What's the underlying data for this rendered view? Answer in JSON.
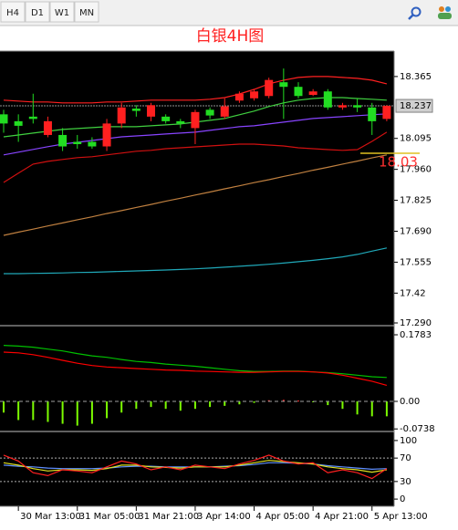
{
  "toolbar": [
    "H4",
    "D1",
    "W1",
    "MN"
  ],
  "chart_data": [
    {
      "type": "candlestick",
      "title": "白银4H图",
      "ylim": [
        17.286,
        18.468
      ],
      "yticks": [
        18.365,
        18.095,
        {
          "value": 17.96,
          "label": "17.960"
        },
        17.825,
        {
          "value": 17.69,
          "label": "17.690"
        },
        17.555,
        17.42,
        {
          "value": 17.29,
          "label": "17.290"
        }
      ],
      "current_price": 18.237,
      "level": 18.03,
      "level_color": "#e0c020",
      "level_label_color": "#ff3030",
      "up_color": "#ff2020",
      "down_color": "#22dd22",
      "candles": {
        "open": [
          18.2,
          18.17,
          18.19,
          18.11,
          18.11,
          18.08,
          18.08,
          18.06,
          18.16,
          18.225,
          18.19,
          18.19,
          18.17,
          18.14,
          18.22,
          18.19,
          18.26,
          18.27,
          18.28,
          18.34,
          18.32,
          18.285,
          18.3,
          18.23,
          18.24,
          18.23,
          18.18
        ],
        "high": [
          18.22,
          18.2,
          18.29,
          18.19,
          18.14,
          18.11,
          18.1,
          18.18,
          18.25,
          18.24,
          18.25,
          18.2,
          18.18,
          18.22,
          18.23,
          18.27,
          18.3,
          18.31,
          18.36,
          18.4,
          18.34,
          18.31,
          18.31,
          18.25,
          18.27,
          18.25,
          18.24
        ],
        "low": [
          18.12,
          18.08,
          18.16,
          18.1,
          18.04,
          18.05,
          18.05,
          18.04,
          18.14,
          18.19,
          18.17,
          18.16,
          18.14,
          18.07,
          18.18,
          18.18,
          18.25,
          18.26,
          18.27,
          18.18,
          18.27,
          18.28,
          18.22,
          18.22,
          18.21,
          18.11,
          18.17
        ],
        "close": [
          18.16,
          18.15,
          18.18,
          18.17,
          18.06,
          18.07,
          18.06,
          18.16,
          18.23,
          18.215,
          18.24,
          18.17,
          18.16,
          18.21,
          18.195,
          18.235,
          18.29,
          18.3,
          18.35,
          18.32,
          18.28,
          18.3,
          18.23,
          18.24,
          18.23,
          18.17,
          18.237
        ]
      },
      "lines": [
        {
          "color": "#ff2020",
          "values": [
            18.262,
            18.258,
            18.254,
            18.254,
            18.25,
            18.25,
            18.25,
            18.254,
            18.254,
            18.258,
            18.262,
            18.262,
            18.262,
            18.262,
            18.266,
            18.273,
            18.289,
            18.309,
            18.333,
            18.349,
            18.361,
            18.365,
            18.365,
            18.361,
            18.357,
            18.349,
            18.333
          ]
        },
        {
          "color": "#d01010",
          "values": [
            17.903,
            17.943,
            17.983,
            17.995,
            18.003,
            18.011,
            18.015,
            18.023,
            18.031,
            18.039,
            18.043,
            18.05,
            18.054,
            18.058,
            18.062,
            18.066,
            18.07,
            18.07,
            18.066,
            18.062,
            18.054,
            18.05,
            18.046,
            18.043,
            18.046,
            18.082,
            18.122
          ]
        },
        {
          "color": "#40d040",
          "values": [
            18.102,
            18.11,
            18.118,
            18.126,
            18.134,
            18.138,
            18.142,
            18.146,
            18.146,
            18.146,
            18.15,
            18.154,
            18.158,
            18.166,
            18.174,
            18.182,
            18.198,
            18.214,
            18.234,
            18.25,
            18.262,
            18.269,
            18.273,
            18.273,
            18.269,
            18.266,
            18.262
          ]
        },
        {
          "color": "#8844ff",
          "values": [
            18.023,
            18.035,
            18.047,
            18.059,
            18.07,
            18.078,
            18.086,
            18.094,
            18.102,
            18.106,
            18.11,
            18.114,
            18.118,
            18.122,
            18.13,
            18.138,
            18.146,
            18.15,
            18.158,
            18.166,
            18.174,
            18.182,
            18.186,
            18.19,
            18.194,
            18.198,
            18.202
          ]
        },
        {
          "color": "#c08040",
          "values": [
            17.672,
            17.686,
            17.699,
            17.713,
            17.726,
            17.74,
            17.753,
            17.767,
            17.78,
            17.794,
            17.807,
            17.821,
            17.834,
            17.848,
            17.861,
            17.875,
            17.888,
            17.902,
            17.915,
            17.929,
            17.942,
            17.956,
            17.969,
            17.983,
            17.996,
            18.01,
            18.023
          ]
        },
        {
          "color": "#20a8b8",
          "values": [
            17.505,
            17.505,
            17.506,
            17.507,
            17.508,
            17.51,
            17.511,
            17.513,
            17.515,
            17.517,
            17.519,
            17.521,
            17.523,
            17.526,
            17.529,
            17.533,
            17.537,
            17.541,
            17.546,
            17.551,
            17.557,
            17.563,
            17.57,
            17.578,
            17.589,
            17.603,
            17.617
          ]
        }
      ]
    },
    {
      "type": "macd",
      "ylim": [
        -0.0782,
        0.2003
      ],
      "yticks": [
        0.1783,
        {
          "value": 0,
          "label": "0.00"
        },
        -0.0738
      ],
      "zero_line": true,
      "histogram": {
        "color": "#7cfc00",
        "positive_color": "#ff3030",
        "values": [
          -0.03,
          -0.05,
          -0.05,
          -0.055,
          -0.06,
          -0.065,
          -0.06,
          -0.045,
          -0.03,
          -0.02,
          -0.015,
          -0.02,
          -0.025,
          -0.02,
          -0.015,
          -0.012,
          -0.008,
          -0.004,
          0.003,
          0.004,
          0.002,
          -0.002,
          -0.01,
          -0.02,
          -0.035,
          -0.04,
          -0.04
        ]
      },
      "lines": [
        {
          "color": "#00c000",
          "values": [
            0.15,
            0.148,
            0.145,
            0.14,
            0.135,
            0.128,
            0.122,
            0.118,
            0.112,
            0.107,
            0.104,
            0.1,
            0.097,
            0.094,
            0.09,
            0.086,
            0.082,
            0.08,
            0.08,
            0.081,
            0.081,
            0.079,
            0.077,
            0.074,
            0.07,
            0.066,
            0.064
          ]
        },
        {
          "color": "#ff0000",
          "values": [
            0.132,
            0.13,
            0.125,
            0.118,
            0.11,
            0.102,
            0.096,
            0.092,
            0.09,
            0.088,
            0.086,
            0.084,
            0.083,
            0.081,
            0.08,
            0.079,
            0.078,
            0.078,
            0.079,
            0.08,
            0.08,
            0.079,
            0.076,
            0.07,
            0.062,
            0.054,
            0.043
          ]
        }
      ]
    },
    {
      "type": "stochastic",
      "ylim": [
        -12.3,
        112.3
      ],
      "yticks": [
        100,
        70,
        30,
        0
      ],
      "levels": [
        70,
        30
      ],
      "categories": [
        null,
        "30 Mar 13:00",
        null,
        null,
        null,
        "31 Mar 05:00",
        null,
        null,
        null,
        "31 Mar 21:00",
        null,
        null,
        null,
        "3 Apr 14:00",
        null,
        null,
        null,
        "4 Apr 05:00",
        null,
        null,
        null,
        "4 Apr 21:00",
        null,
        null,
        null,
        "5 Apr 13:00",
        null
      ],
      "lines": [
        {
          "color": "#6090ff",
          "values": [
            58,
            56,
            55,
            53,
            52,
            52,
            52,
            53,
            55,
            56,
            56,
            55,
            55,
            55,
            55,
            56,
            57,
            59,
            62,
            62,
            61,
            60,
            57,
            55,
            53,
            51,
            52
          ]
        },
        {
          "color": "#e0e020",
          "values": [
            62,
            58,
            52,
            48,
            50,
            50,
            49,
            52,
            58,
            58,
            55,
            54,
            53,
            55,
            55,
            55,
            58,
            62,
            66,
            64,
            62,
            60,
            55,
            52,
            50,
            46,
            50
          ]
        },
        {
          "color": "#ff2020",
          "values": [
            75,
            65,
            45,
            40,
            50,
            48,
            45,
            55,
            65,
            60,
            50,
            55,
            50,
            58,
            55,
            52,
            60,
            66,
            75,
            65,
            60,
            62,
            45,
            50,
            45,
            35,
            52
          ]
        }
      ]
    }
  ]
}
